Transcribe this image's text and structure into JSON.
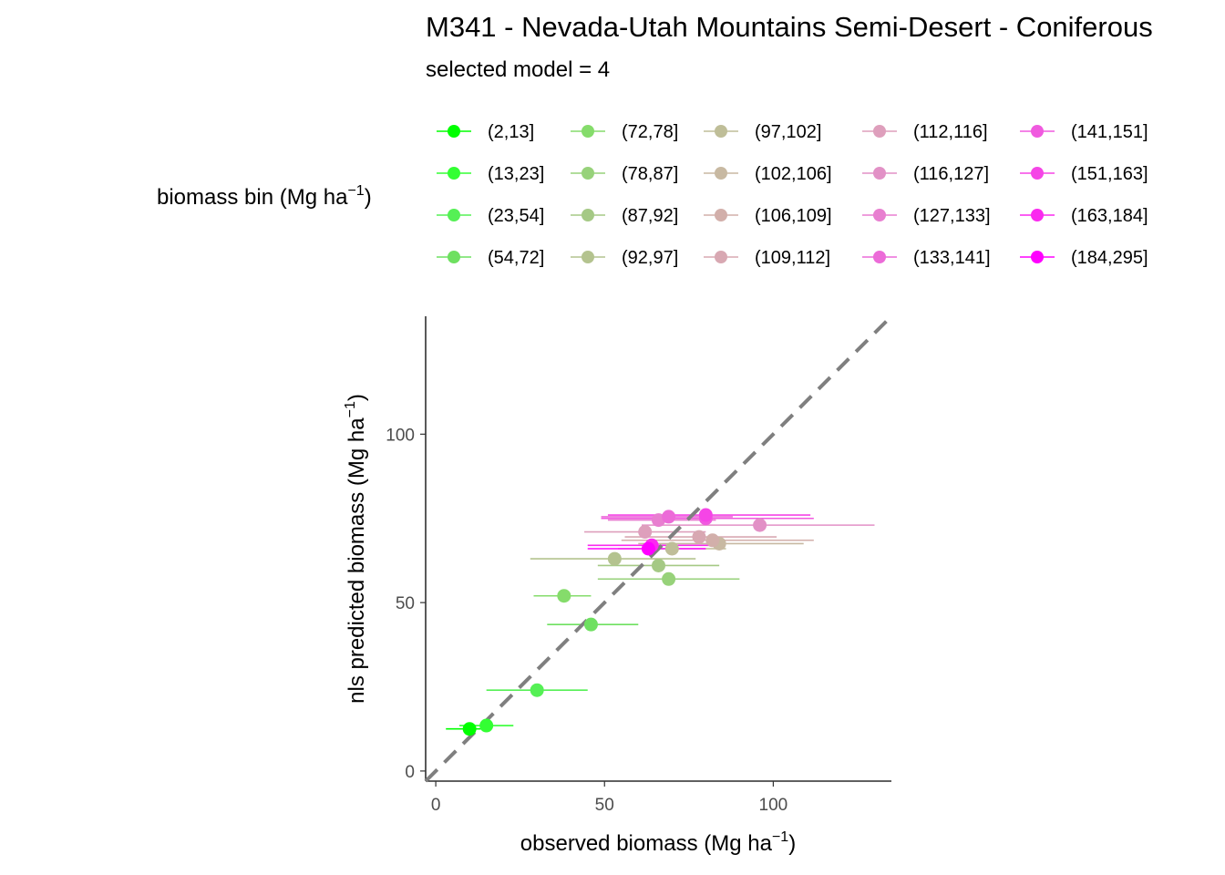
{
  "chart_data": {
    "type": "scatter",
    "title": "M341 - Nevada-Utah Mountains Semi-Desert - Coniferous",
    "subtitle": "selected model = 4",
    "xlabel": "observed biomass (Mg ha",
    "xlabel_sup": "−1",
    "xlabel_end": ")",
    "ylabel": "nls predicted biomass (Mg ha",
    "ylabel_sup": "−1",
    "ylabel_end": ")",
    "xlim": [
      -3,
      135
    ],
    "ylim": [
      -3,
      135
    ],
    "x_ticks": [
      0,
      50,
      100
    ],
    "y_ticks": [
      0,
      50,
      100
    ],
    "reference_line": "1:1 dashed",
    "grid": false,
    "legend": {
      "title": "biomass bin (Mg ha",
      "title_sup": "−1",
      "title_end": ")",
      "position": "top"
    },
    "series": [
      {
        "name": "(2,13]",
        "color": "#00FF00",
        "x": 10,
        "y": 12.5,
        "xerr": [
          3,
          16
        ]
      },
      {
        "name": "(13,23]",
        "color": "#33FF33",
        "x": 15,
        "y": 13.5,
        "xerr": [
          7,
          23
        ]
      },
      {
        "name": "(23,54]",
        "color": "#55F055",
        "x": 30,
        "y": 24,
        "xerr": [
          15,
          45
        ]
      },
      {
        "name": "(54,72]",
        "color": "#6EE060",
        "x": 46,
        "y": 43.5,
        "xerr": [
          33,
          60
        ]
      },
      {
        "name": "(72,78]",
        "color": "#85DC6B",
        "x": 38,
        "y": 52,
        "xerr": [
          29,
          46
        ]
      },
      {
        "name": "(78,87]",
        "color": "#97D27A",
        "x": 69,
        "y": 57,
        "xerr": [
          48,
          90
        ]
      },
      {
        "name": "(87,92]",
        "color": "#A5C985",
        "x": 66,
        "y": 61,
        "xerr": [
          48,
          84
        ]
      },
      {
        "name": "(92,97]",
        "color": "#B4C38F",
        "x": 53,
        "y": 63,
        "xerr": [
          28,
          77
        ]
      },
      {
        "name": "(97,102]",
        "color": "#BFBE98",
        "x": 70,
        "y": 66,
        "xerr": [
          54,
          86
        ]
      },
      {
        "name": "(102,106]",
        "color": "#C8B9A2",
        "x": 84,
        "y": 67.5,
        "xerr": [
          60,
          109
        ]
      },
      {
        "name": "(106,109]",
        "color": "#D2AFAA",
        "x": 82,
        "y": 68.5,
        "xerr": [
          55,
          112
        ]
      },
      {
        "name": "(109,112]",
        "color": "#D8A8B2",
        "x": 78,
        "y": 69.5,
        "xerr": [
          56,
          101
        ]
      },
      {
        "name": "(112,116]",
        "color": "#DE9FBC",
        "x": 62,
        "y": 71,
        "xerr": [
          44,
          80
        ]
      },
      {
        "name": "(116,127]",
        "color": "#E291C6",
        "x": 96,
        "y": 73,
        "xerr": [
          61,
          130
        ]
      },
      {
        "name": "(127,133]",
        "color": "#E87FD0",
        "x": 66,
        "y": 74.5,
        "xerr": [
          51,
          83
        ]
      },
      {
        "name": "(133,141]",
        "color": "#EC6BD8",
        "x": 69,
        "y": 75.5,
        "xerr": [
          49,
          88
        ]
      },
      {
        "name": "(141,151]",
        "color": "#F05ADF",
        "x": 80,
        "y": 75,
        "xerr": [
          49,
          112
        ]
      },
      {
        "name": "(151,163]",
        "color": "#F545E6",
        "x": 80,
        "y": 76,
        "xerr": [
          51,
          111
        ]
      },
      {
        "name": "(163,184]",
        "color": "#FA2AEF",
        "x": 64,
        "y": 67,
        "xerr": [
          45,
          83
        ]
      },
      {
        "name": "(184,295]",
        "color": "#FF00FF",
        "x": 63,
        "y": 66,
        "xerr": [
          45,
          80
        ]
      }
    ]
  }
}
